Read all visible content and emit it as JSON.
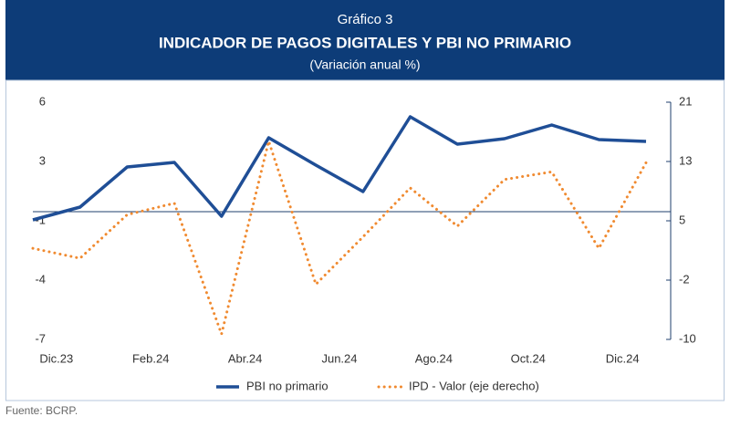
{
  "chart_data": {
    "type": "line",
    "kicker": "Gráfico 3",
    "title": "INDICADOR DE PAGOS DIGITALES Y PBI NO PRIMARIO",
    "subtitle": "(Variación anual %)",
    "source": "Fuente: BCRP.",
    "categories": [
      null,
      "Dic.23",
      null,
      "Feb.24",
      null,
      "Abr.24",
      null,
      "Jun.24",
      null,
      "Ago.24",
      null,
      "Oct.24",
      null,
      "Dic.24"
    ],
    "series": [
      {
        "name": "PBI no primario",
        "color": "#1f4e96",
        "style": "solid",
        "values": [
          -0.45,
          0.25,
          2.45,
          2.7,
          -0.25,
          4.05,
          2.55,
          1.1,
          5.2,
          3.7,
          4.0,
          4.75,
          3.95,
          3.85
        ]
      },
      {
        "name": "IPD - Valor (eje derecho)",
        "color": "#f08a30",
        "style": "dotted",
        "axis": "y2",
        "values": [
          1.9,
          0.6,
          6.3,
          7.8,
          -9.3,
          15.9,
          -2.8,
          3.4,
          9.8,
          4.8,
          10.9,
          11.9,
          1.9,
          13.1
        ]
      }
    ],
    "ylim": [
      -7,
      6
    ],
    "yticks": [
      -7,
      {
        "value": -3.75,
        "label": "-4"
      },
      {
        "value": -0.5,
        "label": "-1"
      },
      {
        "value": 2.75,
        "label": "3"
      },
      6
    ],
    "y2lim": [
      -10,
      21
    ],
    "y2ticks": [
      -10,
      {
        "value": -2.25,
        "label": "-2"
      },
      {
        "value": 5.5,
        "label": "5"
      },
      {
        "value": 13.25,
        "label": "13"
      },
      21
    ],
    "zero_line": 0
  }
}
